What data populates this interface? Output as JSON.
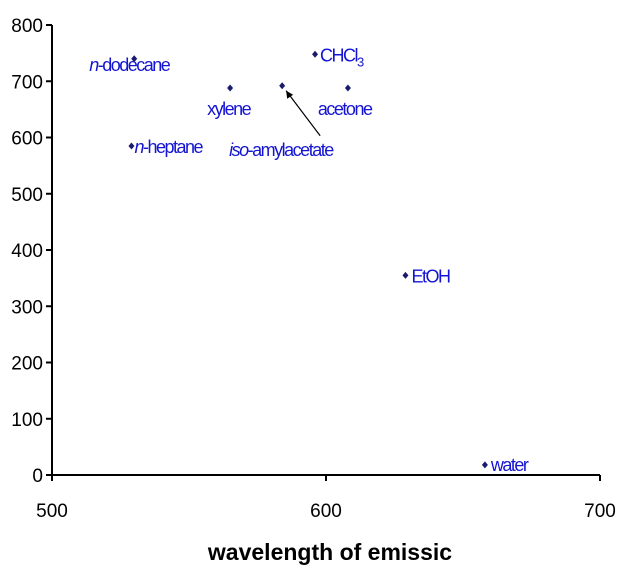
{
  "chart_data": {
    "type": "scatter",
    "xlabel": "wavelength of emissic",
    "ylabel": "",
    "xlim": [
      500,
      700
    ],
    "ylim": [
      0,
      800
    ],
    "xticks": [
      500,
      600,
      700
    ],
    "yticks": [
      0,
      100,
      200,
      300,
      400,
      500,
      600,
      700,
      800
    ],
    "grid": false,
    "colors": {
      "point": "#1a1a6e",
      "label": "#1414d2",
      "axis": "#000000"
    },
    "points": [
      {
        "x": 530,
        "y": 740,
        "label": "-dodecane",
        "prefix": "n"
      },
      {
        "x": 565,
        "y": 688,
        "label": "xylene"
      },
      {
        "x": 529,
        "y": 585,
        "label": "-heptane",
        "prefix": "n"
      },
      {
        "x": 596,
        "y": 748,
        "label": "CHCl",
        "sub": "3"
      },
      {
        "x": 584,
        "y": 692,
        "label": "-amylacetate",
        "prefix": "iso"
      },
      {
        "x": 608,
        "y": 688,
        "label": "acetone"
      },
      {
        "x": 629,
        "y": 355,
        "label": "EtOH"
      },
      {
        "x": 658,
        "y": 18,
        "label": "water"
      }
    ]
  }
}
